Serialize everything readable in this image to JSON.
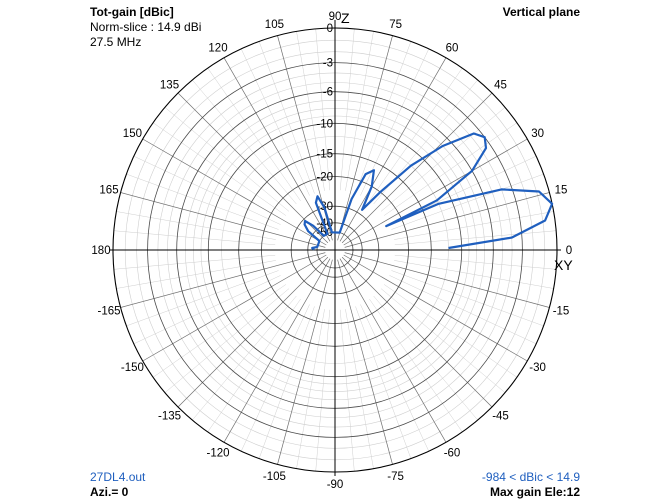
{
  "header": {
    "title": "Tot-gain [dBic]",
    "norm_slice": "Norm-slice : 14.9 dBi",
    "frequency": "27.5 MHz",
    "plane": "Vertical plane"
  },
  "footer": {
    "file": "27DL4.out",
    "azimuth": "Azi.= 0",
    "range": "-984 < dBic < 14.9",
    "max_gain": "Max gain Ele:12"
  },
  "colors": {
    "trace": "#1f5fbf",
    "grid": "#cfcfcf",
    "ring": "#000000"
  },
  "chart_data": {
    "type": "polar",
    "radial_unit": "dB relative to max",
    "radial_ticks": [
      "0",
      "-3",
      "-6",
      "-10",
      "-15",
      "-20",
      "-30",
      "-40",
      "-50"
    ],
    "angle_ticks": [
      {
        "deg": 90,
        "label": "90"
      },
      {
        "deg": 75,
        "label": "75"
      },
      {
        "deg": 60,
        "label": "60"
      },
      {
        "deg": 45,
        "label": "45"
      },
      {
        "deg": 30,
        "label": "30"
      },
      {
        "deg": 15,
        "label": "15"
      },
      {
        "deg": 0,
        "label": "0"
      },
      {
        "deg": -15,
        "label": "-15"
      },
      {
        "deg": -30,
        "label": "-30"
      },
      {
        "deg": -45,
        "label": "-45"
      },
      {
        "deg": -60,
        "label": "-60"
      },
      {
        "deg": -75,
        "label": "-75"
      },
      {
        "deg": -90,
        "label": "-90"
      },
      {
        "deg": -105,
        "label": "-105"
      },
      {
        "deg": -120,
        "label": "-120"
      },
      {
        "deg": -135,
        "label": "-135"
      },
      {
        "deg": -150,
        "label": "-150"
      },
      {
        "deg": -165,
        "label": "-165"
      },
      {
        "deg": 180,
        "label": "180"
      },
      {
        "deg": 165,
        "label": "165"
      },
      {
        "deg": 150,
        "label": "150"
      },
      {
        "deg": 135,
        "label": "135"
      },
      {
        "deg": 120,
        "label": "120"
      },
      {
        "deg": 105,
        "label": "105"
      }
    ],
    "axis_words": {
      "vertical": "Z",
      "horizontal": "XY"
    },
    "series": [
      {
        "points": [
          [
            1,
            -12
          ],
          [
            4,
            -4
          ],
          [
            8,
            -0.8
          ],
          [
            12,
            0
          ],
          [
            16,
            -0.8
          ],
          [
            20,
            -4
          ],
          [
            24,
            -12
          ],
          [
            25,
            -25
          ],
          [
            26,
            -12
          ],
          [
            30,
            -6
          ],
          [
            34,
            -3.5
          ],
          [
            37,
            -3
          ],
          [
            40,
            -3.6
          ],
          [
            44,
            -7
          ],
          [
            48,
            -12
          ],
          [
            52,
            -20
          ],
          [
            56,
            -28
          ],
          [
            60,
            -20
          ],
          [
            64,
            -16.5
          ],
          [
            68,
            -18
          ],
          [
            72,
            -26
          ],
          [
            75,
            -50
          ],
          [
            100,
            -50
          ],
          [
            104,
            -30
          ],
          [
            108,
            -25
          ],
          [
            112,
            -27
          ],
          [
            115,
            -50
          ],
          [
            128,
            -50
          ],
          [
            132,
            -36
          ],
          [
            136,
            -31
          ],
          [
            140,
            -32
          ],
          [
            145,
            -36
          ],
          [
            150,
            -50
          ],
          [
            170,
            -50
          ],
          [
            175,
            -44
          ],
          [
            179,
            -46
          ]
        ]
      }
    ]
  }
}
